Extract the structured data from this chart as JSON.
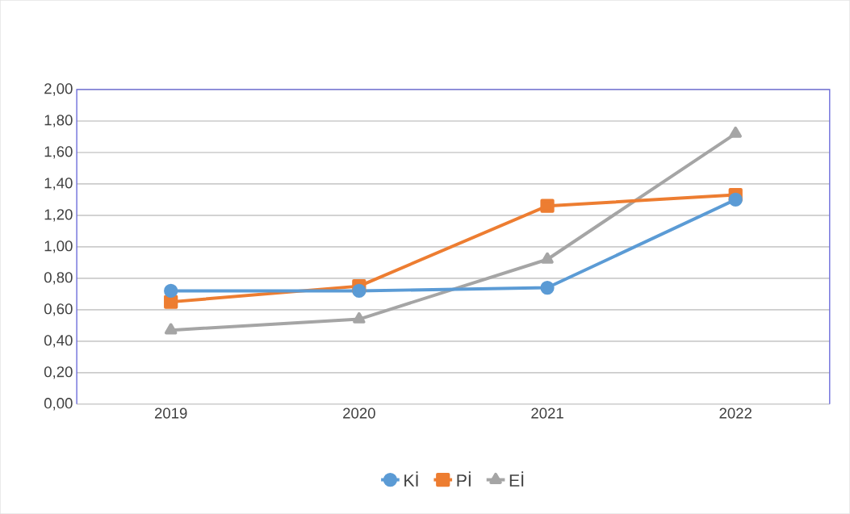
{
  "chart_data": {
    "type": "line",
    "categories": [
      "2019",
      "2020",
      "2021",
      "2022"
    ],
    "series": [
      {
        "name": "Kİ",
        "color": "#5b9bd5",
        "marker": "circle",
        "values": [
          0.72,
          0.72,
          0.74,
          1.3
        ]
      },
      {
        "name": "Pİ",
        "color": "#ed7d31",
        "marker": "square",
        "values": [
          0.65,
          0.75,
          1.26,
          1.33
        ]
      },
      {
        "name": "Eİ",
        "color": "#a5a5a5",
        "marker": "triangle",
        "values": [
          0.47,
          0.54,
          0.92,
          1.72
        ]
      }
    ],
    "ylim": [
      0,
      2
    ],
    "yticks": [
      {
        "value": 0,
        "label": "0,00"
      },
      {
        "value": 0.2,
        "label": "0,20"
      },
      {
        "value": 0.4,
        "label": "0,40"
      },
      {
        "value": 0.6,
        "label": "0,60"
      },
      {
        "value": 0.8,
        "label": "0,80"
      },
      {
        "value": 1.0,
        "label": "1,00"
      },
      {
        "value": 1.2,
        "label": "1,20"
      },
      {
        "value": 1.4,
        "label": "1,40"
      },
      {
        "value": 1.6,
        "label": "1,60"
      },
      {
        "value": 1.8,
        "label": "1,80"
      },
      {
        "value": 2.0,
        "label": "2,00"
      }
    ],
    "grid": "y",
    "legend": "bottom",
    "line_style": "solid"
  }
}
